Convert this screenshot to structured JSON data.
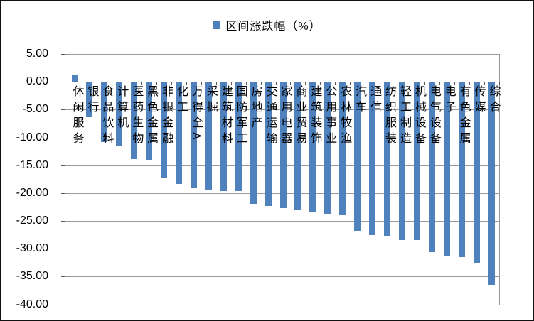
{
  "window": {
    "background": "#FFFFFF",
    "border_color": "#111111"
  },
  "legend": {
    "label": "区间涨跌幅（%）",
    "swatch_color": "#4F81BD"
  },
  "chart_data": {
    "type": "bar",
    "title": "区间涨跌幅（%）",
    "legend_entries": [
      "区间涨跌幅（%）"
    ],
    "legend_position": "top-center",
    "grid": true,
    "bar_color": "#4F81BD",
    "gridline_color": "#9A9A9A",
    "axis_color": "#595959",
    "xlabel": "",
    "ylabel": "",
    "ylim": [
      -40,
      5
    ],
    "ytick_step": 5,
    "ytick_labels": [
      "5.00",
      "0.00",
      "-5.00",
      "-10.00",
      "-15.00",
      "-20.00",
      "-25.00",
      "-30.00",
      "-35.00",
      "-40.00"
    ],
    "ytick_values": [
      5,
      0,
      -5,
      -10,
      -15,
      -20,
      -25,
      -30,
      -35,
      -40
    ],
    "categories": [
      "休闲服务",
      "银行",
      "食品饮料",
      "计算机",
      "医药生物",
      "黑色金属",
      "非银金融",
      "化工",
      "万得全A",
      "采掘",
      "建筑材料",
      "国防军工",
      "房地产",
      "交通运输",
      "家用电器",
      "商业贸易",
      "建筑装饰",
      "公用事业",
      "农林牧渔",
      "汽车",
      "通信",
      "纺织服装",
      "轻工制造",
      "机械设备",
      "电气设备",
      "电子",
      "有色金属",
      "传媒",
      "综合"
    ],
    "values": [
      1.3,
      -6.4,
      -10.8,
      -11.5,
      -13.9,
      -14.1,
      -17.4,
      -18.3,
      -19.1,
      -19.4,
      -19.6,
      -19.7,
      -21.9,
      -22.3,
      -22.7,
      -23.0,
      -23.4,
      -23.8,
      -24.0,
      -26.8,
      -27.6,
      -27.8,
      -28.4,
      -28.5,
      -30.6,
      -31.4,
      -31.5,
      -32.5,
      -36.6
    ]
  }
}
